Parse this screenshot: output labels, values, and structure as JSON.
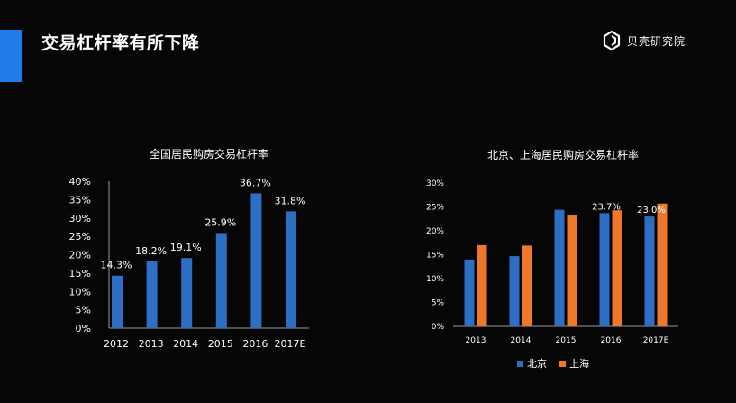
{
  "slide": {
    "title": "交易杠杆率有所下降",
    "logo_text": "贝壳研究院",
    "logo_icon": "shell-logo-icon",
    "accent_color": "#1f7be6"
  },
  "colors": {
    "blue": "#2d6fc4",
    "orange": "#f0782a"
  },
  "chart_data": [
    {
      "type": "bar",
      "title": "全国居民购房交易杠杆率",
      "categories": [
        "2012",
        "2013",
        "2014",
        "2015",
        "2016",
        "2017E"
      ],
      "values": [
        14.3,
        18.2,
        19.1,
        25.9,
        36.7,
        31.8
      ],
      "data_labels": [
        "14.3%",
        "18.2%",
        "19.1%",
        "25.9%",
        "36.7%",
        "31.8%"
      ],
      "yticks": [
        "0%",
        "5%",
        "10%",
        "15%",
        "20%",
        "25%",
        "30%",
        "35%",
        "40%"
      ],
      "ylim": [
        0,
        40
      ],
      "xlabel": "",
      "ylabel": "",
      "grid": false,
      "legend": "none"
    },
    {
      "type": "bar",
      "title": "北京、上海居民购房交易杠杆率",
      "categories": [
        "2013",
        "2014",
        "2015",
        "2016",
        "2017E"
      ],
      "series": [
        {
          "name": "北京",
          "values": [
            14.0,
            14.7,
            24.4,
            23.7,
            23.0
          ]
        },
        {
          "name": "上海",
          "values": [
            17.0,
            16.9,
            23.4,
            24.3,
            25.7
          ]
        }
      ],
      "data_labels": [
        {
          "category": "2016",
          "series": "北京",
          "label": "23.7%"
        },
        {
          "category": "2017E",
          "series": "北京",
          "label": "23.0%"
        }
      ],
      "yticks": [
        "0%",
        "5%",
        "10%",
        "15%",
        "20%",
        "25%",
        "30%"
      ],
      "ylim": [
        0,
        30
      ],
      "xlabel": "",
      "ylabel": "",
      "grid": false,
      "legend": "bottom"
    }
  ]
}
